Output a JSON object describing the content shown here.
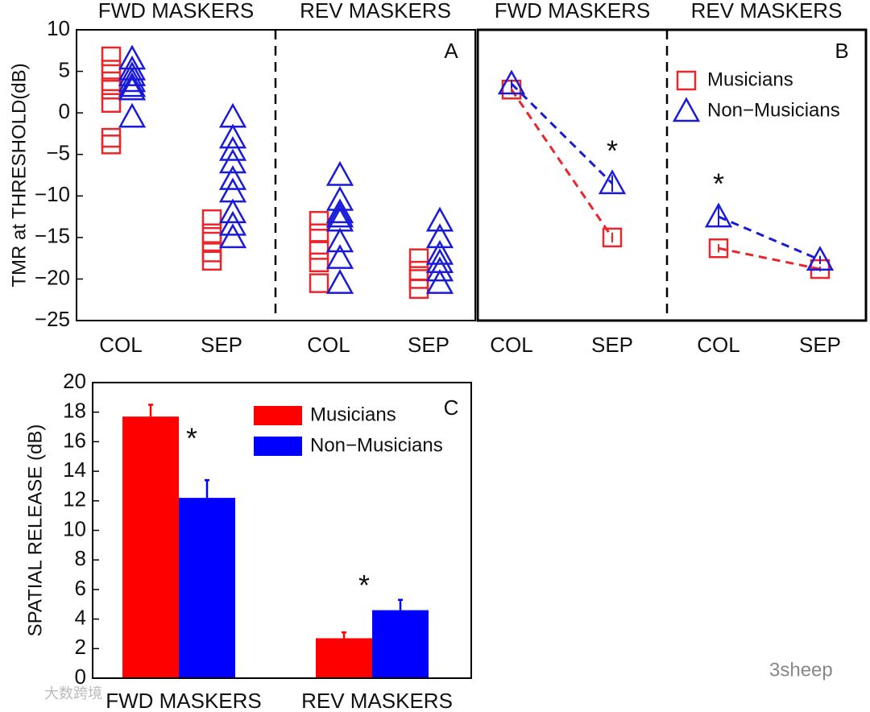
{
  "chart_data": [
    {
      "type": "strip",
      "panel_label": "A",
      "ylabel": "TMR at THRESHOLD(dB)",
      "groups": [
        "FWD MASKERS",
        "REV MASKERS"
      ],
      "categories": [
        "COL",
        "SEP",
        "COL",
        "SEP"
      ],
      "ylim": [
        -25,
        10
      ],
      "yticks": [
        {
          "value": -25,
          "label": "−25"
        },
        {
          "value": -20,
          "label": "−20"
        },
        {
          "value": -15,
          "label": "−15"
        },
        {
          "value": -10,
          "label": "−10"
        },
        {
          "value": -5,
          "label": "−5"
        },
        0,
        5,
        10
      ],
      "series": [
        {
          "name": "Musicians",
          "color": "#e8262b",
          "marker": "square",
          "values": [
            [
              6.8,
              5.2,
              3.8,
              2.8,
              1.2,
              -3.0,
              -3.8
            ],
            [
              -12.8,
              -14.5,
              -15.5,
              -16.8,
              -17.8
            ],
            [
              -13,
              -14.5,
              -16.5,
              -18,
              -20.5
            ],
            [
              -17.5,
              -19,
              -20,
              -21.2
            ]
          ]
        },
        {
          "name": "Non-Musicians",
          "color": "#1a1adb",
          "marker": "triangle",
          "values": [
            [
              6.5,
              5.2,
              4.5,
              3.8,
              3.2,
              2.8,
              -0.5
            ],
            [
              -0.5,
              -3,
              -4.5,
              -6,
              -8,
              -9.5,
              -12,
              -13.5,
              -15
            ],
            [
              -7.5,
              -10.5,
              -12,
              -12.5,
              -13,
              -15.5,
              -17.5,
              -20.5
            ],
            [
              -13,
              -15,
              -17,
              -18,
              -19,
              -20.5
            ]
          ]
        }
      ]
    },
    {
      "type": "line",
      "panel_label": "B",
      "groups": [
        "FWD MASKERS",
        "REV MASKERS"
      ],
      "categories": [
        "COL",
        "SEP",
        "COL",
        "SEP"
      ],
      "ylim": [
        -25,
        10
      ],
      "annotations": [
        "*",
        "*"
      ],
      "legend": "upper right",
      "series": [
        {
          "name": "Musicians",
          "color": "#e8262b",
          "marker": "square",
          "values": [
            2.8,
            -15,
            -16.3,
            -18.8
          ],
          "errors": [
            0.3,
            0.6,
            0.5,
            0.3
          ]
        },
        {
          "name": "Non−Musicians",
          "color": "#1a1adb",
          "marker": "triangle",
          "values": [
            3.5,
            -8.5,
            -12.5,
            -17.7
          ],
          "errors": [
            0.5,
            1.0,
            1.2,
            0.5
          ]
        }
      ]
    },
    {
      "type": "bar",
      "panel_label": "C",
      "ylabel": "SPATIAL RELEASE (dB)",
      "categories": [
        "FWD MASKERS",
        "REV MASKERS"
      ],
      "ylim": [
        0,
        20
      ],
      "yticks": [
        0,
        2,
        4,
        6,
        8,
        10,
        12,
        14,
        16,
        18,
        20
      ],
      "annotations": [
        "*",
        "*"
      ],
      "legend": "upper right",
      "series": [
        {
          "name": "Musicians",
          "color": "#ff0000",
          "values": [
            17.7,
            2.7
          ],
          "errors": [
            0.8,
            0.4
          ]
        },
        {
          "name": "Non−Musicians",
          "color": "#0000ff",
          "values": [
            12.2,
            4.6
          ],
          "errors": [
            1.2,
            0.7
          ]
        }
      ]
    }
  ],
  "watermarks": [
    "3sheep",
    "大数跨境"
  ]
}
